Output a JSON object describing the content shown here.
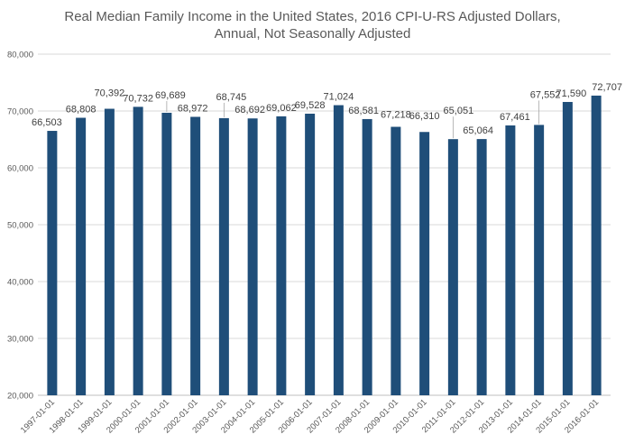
{
  "chart_data": {
    "type": "bar",
    "title_line1": "Real Median Family Income in the United States, 2016 CPI-U-RS Adjusted Dollars,",
    "title_line2": "Annual, Not Seasonally Adjusted",
    "xlabel": "",
    "ylabel": "",
    "ylim": [
      20000,
      80000
    ],
    "yticks": [
      20000,
      30000,
      40000,
      50000,
      60000,
      70000,
      80000
    ],
    "ytick_labels": [
      "20,000",
      "30,000",
      "40,000",
      "50,000",
      "60,000",
      "70,000",
      "80,000"
    ],
    "categories": [
      "1997-01-01",
      "1998-01-01",
      "1999-01-01",
      "2000-01-01",
      "2001-01-01",
      "2002-01-01",
      "2003-01-01",
      "2004-01-01",
      "2005-01-01",
      "2006-01-01",
      "2007-01-01",
      "2008-01-01",
      "2009-01-01",
      "2010-01-01",
      "2011-01-01",
      "2012-01-01",
      "2013-01-01",
      "2014-01-01",
      "2015-01-01",
      "2016-01-01"
    ],
    "values": [
      66503,
      68808,
      70392,
      70732,
      69689,
      68972,
      68745,
      68692,
      69062,
      69528,
      71024,
      68581,
      67218,
      66310,
      65051,
      65064,
      67461,
      67552,
      71590,
      72707
    ],
    "value_labels": [
      "66,503",
      "68,808",
      "70,392",
      "70,732",
      "69,689",
      "68,972",
      "68,745",
      "68,692",
      "69,062",
      "69,528",
      "71,024",
      "68,581",
      "67,218",
      "66,310",
      "65,051",
      "65,064",
      "67,461",
      "67,552",
      "71,590",
      "72,707"
    ],
    "bar_color": "#1f4e79",
    "gridlines": true,
    "legend": "none"
  }
}
